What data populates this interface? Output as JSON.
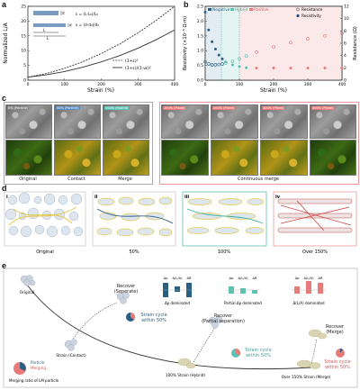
{
  "panels": {
    "a": "a",
    "b": "b",
    "c": "c",
    "d": "d",
    "e": "e"
  },
  "panel_a": {
    "ylabel": "Normalized L/A",
    "xlabel": "Strain (%)",
    "yticks": [
      "0",
      "5",
      "10",
      "15",
      "20",
      "25"
    ],
    "xticks": [
      "0",
      "100",
      "200",
      "300",
      "400"
    ],
    "inset_labels": {
      "d0": "d",
      "L0": "L",
      "L": "L",
      "d": "d"
    },
    "eq1": "ε = (L-L₀)/L₀",
    "eq2": "ν = (d-d₀)/d₀",
    "legend": [
      "(1+ε)²",
      "(1+ε)/(1-νε)²"
    ]
  },
  "panel_b": {
    "ylabel": "Resistivity (×10⁻⁶ Ω·m)",
    "ylabel_right": "Resistance (Ω)",
    "xlabel": "Strain (%)",
    "yticks": [
      "0.0",
      "0.5",
      "1.0",
      "1.5",
      "2.0",
      "2.5"
    ],
    "yticks_right": [
      "0",
      "2",
      "4",
      "6",
      "8",
      "10",
      "12"
    ],
    "xticks": [
      "0",
      "100",
      "200",
      "300",
      "400"
    ],
    "regions": {
      "negative": "Negative",
      "hybrid": "Hybrid",
      "positive": "Positive"
    },
    "legend": [
      "Resistance",
      "Resistivity"
    ],
    "colors": {
      "negative": "#2b5f7f",
      "hybrid": "#5cc2b3",
      "positive": "#e87a7a"
    }
  },
  "chart_data": [
    {
      "type": "line",
      "xlabel": "Strain (%)",
      "ylabel": "Normalized L/A",
      "xlim": [
        0,
        400
      ],
      "ylim": [
        0,
        25
      ],
      "x": [
        0,
        50,
        100,
        150,
        200,
        250,
        300,
        350,
        400
      ],
      "series": [
        {
          "name": "(1+ε)²",
          "values": [
            1,
            2.25,
            4,
            6.25,
            9,
            12.25,
            16,
            20.25,
            25
          ]
        },
        {
          "name": "(1+ε)/(1-νε)²",
          "values": [
            1,
            1.8,
            2.9,
            4.4,
            6.2,
            8.3,
            10.8,
            13.7,
            17.0
          ]
        }
      ]
    },
    {
      "type": "scatter",
      "xlabel": "Strain (%)",
      "ylabel": "Resistivity (×10⁻⁶ Ω·m)",
      "xlim": [
        0,
        400
      ],
      "ylim": [
        0,
        2.5
      ],
      "x": [
        0,
        10,
        20,
        30,
        40,
        50,
        60,
        80,
        100,
        120,
        150,
        200,
        250,
        300,
        350,
        400
      ],
      "series": [
        {
          "name": "Resistivity",
          "values": [
            2.3,
            1.7,
            1.3,
            1.05,
            0.85,
            0.72,
            0.62,
            0.52,
            0.46,
            0.42,
            0.41,
            0.41,
            0.41,
            0.41,
            0.41,
            0.41
          ]
        },
        {
          "name": "Resistance",
          "values": [
            0.62,
            0.55,
            0.52,
            0.52,
            0.53,
            0.55,
            0.58,
            0.64,
            0.72,
            0.82,
            0.95,
            1.12,
            1.27,
            1.4,
            1.5,
            1.58
          ]
        }
      ]
    }
  ],
  "panel_c": {
    "top_labels": [
      "0% (Particle)",
      "50% (Particle)",
      "100% (Hybrid)",
      "150% (Plane)",
      "200% (Plane)",
      "300% (Plane)",
      "400% (Plane)"
    ],
    "bottom_captions": [
      "Original",
      "Contact",
      "Merge",
      "Continuous merge"
    ]
  },
  "panel_d": {
    "sub": [
      "i",
      "ii",
      "iii",
      "iv"
    ],
    "captions": [
      "Original",
      "50%",
      "100%",
      "Over 150%"
    ]
  },
  "panel_e": {
    "original": "Original",
    "recover_separate": "Recover\n(Seperate)",
    "strain_cycle_1": "Strain cycle\nwithin 50%",
    "strain_contact": "Strain (Contact)",
    "recover_partial": "Recover\n(Partial separation)",
    "strain_cycle_2": "Strain cycle\nwithin 50%",
    "strain_hybrid": "100% Strain (Hybrid)",
    "recover_merge": "Recover\n(Merge)",
    "strain_cycle_3": "Strain cycle\nwithin 50%",
    "strain_merge": "Over 150% Strain (Merge)",
    "legend_particle": "Particle",
    "legend_merging": "Merging",
    "legend_caption": "Merging ratio of LM particle",
    "bar_labels": [
      "Δp",
      "Δ(L/A)",
      "ΔR"
    ],
    "dom1": "Δp dominated",
    "dom2": "Partial Δp dominated",
    "dom3": "Δ(L/A) dominated"
  }
}
